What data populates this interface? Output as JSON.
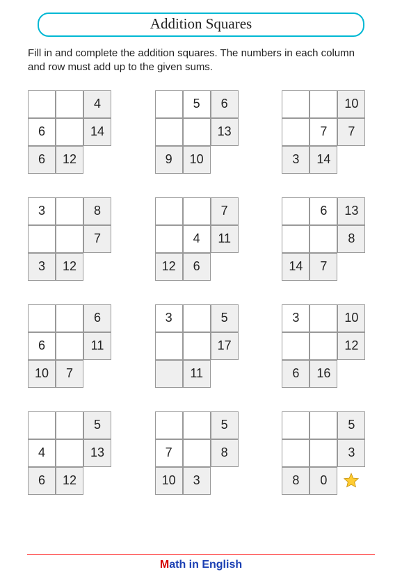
{
  "title": "Addition Squares",
  "instructions": "Fill in and complete the addition squares. The numbers in each column and row must add up to the given sums.",
  "squares": [
    {
      "r0": [
        "",
        "",
        "4"
      ],
      "r1": [
        "6",
        "",
        "14"
      ],
      "r2": [
        "6",
        "12",
        ""
      ]
    },
    {
      "r0": [
        "",
        "5",
        "6"
      ],
      "r1": [
        "",
        "",
        "13"
      ],
      "r2": [
        "9",
        "10",
        ""
      ]
    },
    {
      "r0": [
        "",
        "",
        "10"
      ],
      "r1": [
        "",
        "7",
        "7"
      ],
      "r2": [
        "3",
        "14",
        ""
      ]
    },
    {
      "r0": [
        "3",
        "",
        "8"
      ],
      "r1": [
        "",
        "",
        "7"
      ],
      "r2": [
        "3",
        "12",
        ""
      ]
    },
    {
      "r0": [
        "",
        "",
        "7"
      ],
      "r1": [
        "",
        "4",
        "11"
      ],
      "r2": [
        "12",
        "6",
        ""
      ]
    },
    {
      "r0": [
        "",
        "6",
        "13"
      ],
      "r1": [
        "",
        "",
        "8"
      ],
      "r2": [
        "14",
        "7",
        ""
      ]
    },
    {
      "r0": [
        "",
        "",
        "6"
      ],
      "r1": [
        "6",
        "",
        "11"
      ],
      "r2": [
        "10",
        "7",
        ""
      ]
    },
    {
      "r0": [
        "3",
        "",
        "5"
      ],
      "r1": [
        "",
        "",
        "17"
      ],
      "r2": [
        "",
        "11",
        ""
      ]
    },
    {
      "r0": [
        "3",
        "",
        "10"
      ],
      "r1": [
        "",
        "",
        "12"
      ],
      "r2": [
        "6",
        "16",
        ""
      ]
    },
    {
      "r0": [
        "",
        "",
        "5"
      ],
      "r1": [
        "4",
        "",
        "13"
      ],
      "r2": [
        "6",
        "12",
        ""
      ]
    },
    {
      "r0": [
        "",
        "",
        "5"
      ],
      "r1": [
        "7",
        "",
        "8"
      ],
      "r2": [
        "10",
        "3",
        ""
      ]
    },
    {
      "r0": [
        "",
        "",
        "5"
      ],
      "r1": [
        "",
        "",
        "3"
      ],
      "r2": [
        "8",
        "0",
        "star"
      ]
    }
  ],
  "footer": {
    "m": "M",
    "rest": "ath in English"
  },
  "colors": {
    "title_border": "#00b8d4",
    "cell_border": "#999999",
    "sum_bg": "#efefef",
    "footer_m": "#d40000",
    "footer_rest": "#1a3fb3",
    "footer_rule": "#ff2a2a",
    "star_fill": "#ffcc33",
    "star_stroke": "#c08a00"
  }
}
